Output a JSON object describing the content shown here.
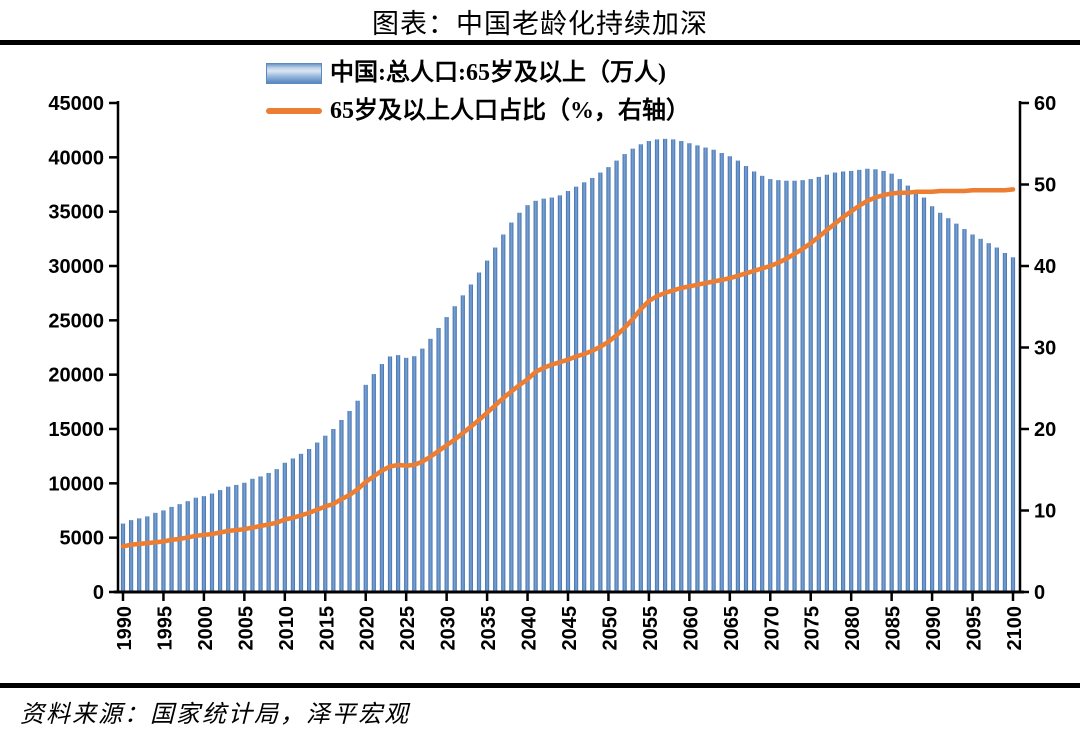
{
  "page": {
    "title": "图表：中国老龄化持续加深",
    "source": "资料来源：国家统计局，泽平宏观"
  },
  "legend": [
    {
      "label": "中国:总人口:65岁及以上（万人)",
      "swatch": "bar-gradient-blue"
    },
    {
      "label": "65岁及以上人口占比（%，右轴）",
      "swatch": "line-orange"
    }
  ],
  "colors": {
    "bar_edge": "#3F6FAD",
    "bar_center": "#7CA4D4",
    "bar_base": "#4F81BD",
    "line": "#ED7D31",
    "axis": "#000000",
    "rule": "#000000"
  },
  "chart_data": {
    "type": "combo",
    "title": "图表：中国老龄化持续加深",
    "grid": false,
    "legend_position": "top-center",
    "x_label": "",
    "x": [
      1990,
      1991,
      1992,
      1993,
      1994,
      1995,
      1996,
      1997,
      1998,
      1999,
      2000,
      2001,
      2002,
      2003,
      2004,
      2005,
      2006,
      2007,
      2008,
      2009,
      2010,
      2011,
      2012,
      2013,
      2014,
      2015,
      2016,
      2017,
      2018,
      2019,
      2020,
      2021,
      2022,
      2023,
      2024,
      2025,
      2026,
      2027,
      2028,
      2029,
      2030,
      2031,
      2032,
      2033,
      2034,
      2035,
      2036,
      2037,
      2038,
      2039,
      2040,
      2041,
      2042,
      2043,
      2044,
      2045,
      2046,
      2047,
      2048,
      2049,
      2050,
      2051,
      2052,
      2053,
      2054,
      2055,
      2056,
      2057,
      2058,
      2059,
      2060,
      2061,
      2062,
      2063,
      2064,
      2065,
      2066,
      2067,
      2068,
      2069,
      2070,
      2071,
      2072,
      2073,
      2074,
      2075,
      2076,
      2077,
      2078,
      2079,
      2080,
      2081,
      2082,
      2083,
      2084,
      2085,
      2086,
      2087,
      2088,
      2089,
      2090,
      2091,
      2092,
      2093,
      2094,
      2095,
      2096,
      2097,
      2098,
      2099,
      2100
    ],
    "x_tick_years": [
      1990,
      1995,
      2000,
      2005,
      2010,
      2015,
      2020,
      2025,
      2030,
      2035,
      2040,
      2045,
      2050,
      2055,
      2060,
      2065,
      2070,
      2075,
      2080,
      2085,
      2090,
      2095,
      2100
    ],
    "left_axis": {
      "min": 0,
      "max": 45000,
      "ticks": [
        0,
        5000,
        10000,
        15000,
        20000,
        25000,
        30000,
        35000,
        40000,
        45000
      ]
    },
    "right_axis": {
      "min": 0,
      "max": 60,
      "ticks": [
        0,
        10,
        20,
        30,
        40,
        50,
        60
      ]
    },
    "series": [
      {
        "name": "中国:总人口:65岁及以上（万人)",
        "type": "bar",
        "axis": "left",
        "values": [
          6299,
          6614,
          6774,
          6960,
          7285,
          7510,
          7833,
          8085,
          8359,
          8679,
          8821,
          9062,
          9377,
          9692,
          9857,
          10055,
          10419,
          10636,
          10956,
          11307,
          11894,
          12288,
          12714,
          13161,
          13755,
          14386,
          15003,
          15831,
          16658,
          17603,
          19064,
          20056,
          20978,
          21676,
          21800,
          21550,
          21700,
          22400,
          23300,
          24300,
          25300,
          26300,
          27300,
          28300,
          29400,
          30500,
          31700,
          32900,
          34000,
          34900,
          35600,
          36000,
          36200,
          36300,
          36500,
          36900,
          37300,
          37700,
          38100,
          38600,
          39100,
          39700,
          40300,
          40800,
          41200,
          41500,
          41650,
          41700,
          41650,
          41500,
          41300,
          41100,
          40900,
          40700,
          40400,
          40100,
          39700,
          39200,
          38700,
          38300,
          38000,
          37900,
          37850,
          37850,
          37900,
          38000,
          38200,
          38400,
          38600,
          38700,
          38750,
          38850,
          38950,
          38900,
          38750,
          38500,
          38000,
          37400,
          36800,
          36300,
          35500,
          34900,
          34400,
          33900,
          33400,
          32900,
          32500,
          32100,
          31700,
          31200,
          30800
        ]
      },
      {
        "name": "65岁及以上人口占比（%，右轴）",
        "type": "line",
        "axis": "right",
        "values": [
          5.6,
          5.8,
          5.9,
          6.0,
          6.1,
          6.2,
          6.4,
          6.5,
          6.7,
          6.9,
          7.0,
          7.1,
          7.3,
          7.5,
          7.6,
          7.7,
          7.9,
          8.1,
          8.3,
          8.5,
          8.9,
          9.1,
          9.4,
          9.7,
          10.1,
          10.5,
          10.8,
          11.4,
          11.9,
          12.6,
          13.5,
          14.2,
          14.9,
          15.4,
          15.6,
          15.5,
          15.6,
          16.0,
          16.6,
          17.3,
          18.0,
          18.7,
          19.5,
          20.3,
          21.1,
          22.0,
          22.9,
          23.8,
          24.6,
          25.4,
          26.1,
          27.0,
          27.5,
          27.9,
          28.2,
          28.5,
          28.9,
          29.2,
          29.6,
          30.1,
          30.7,
          31.5,
          32.4,
          33.5,
          34.7,
          35.7,
          36.3,
          36.7,
          37.0,
          37.3,
          37.5,
          37.7,
          37.9,
          38.1,
          38.3,
          38.5,
          38.8,
          39.1,
          39.4,
          39.7,
          40.0,
          40.4,
          40.9,
          41.5,
          42.1,
          42.8,
          43.6,
          44.4,
          45.2,
          46.0,
          46.7,
          47.4,
          48.0,
          48.4,
          48.7,
          48.9,
          49.0,
          49.0,
          49.1,
          49.1,
          49.1,
          49.2,
          49.2,
          49.2,
          49.2,
          49.3,
          49.3,
          49.3,
          49.3,
          49.3,
          49.4
        ]
      }
    ]
  }
}
